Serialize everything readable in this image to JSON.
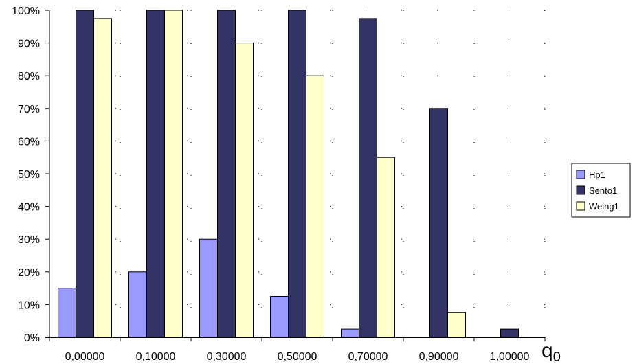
{
  "chart_data": {
    "type": "bar",
    "title": "",
    "xlabel": "q",
    "xlabel_subscript": "0",
    "ylabel": "",
    "ylim": [
      0,
      100
    ],
    "y_ticks": [
      "0%",
      "10%",
      "20%",
      "30%",
      "40%",
      "50%",
      "60%",
      "70%",
      "80%",
      "90%",
      "100%"
    ],
    "categories": [
      "0,00000",
      "0,10000",
      "0,30000",
      "0,50000",
      "0,70000",
      "0,90000",
      "1,00000"
    ],
    "series": [
      {
        "name": "Hp1",
        "color": "#9999ff",
        "values": [
          15,
          20,
          30,
          12.5,
          2.5,
          0,
          0
        ]
      },
      {
        "name": "Sento1",
        "color": "#333366",
        "values": [
          100,
          100,
          100,
          100,
          97.5,
          70,
          2.5
        ]
      },
      {
        "name": "Weing1",
        "color": "#ffffcc",
        "values": [
          97.5,
          100,
          90,
          80,
          55,
          7.5,
          0
        ]
      }
    ],
    "grid": "dotted",
    "legend_position": "right"
  }
}
